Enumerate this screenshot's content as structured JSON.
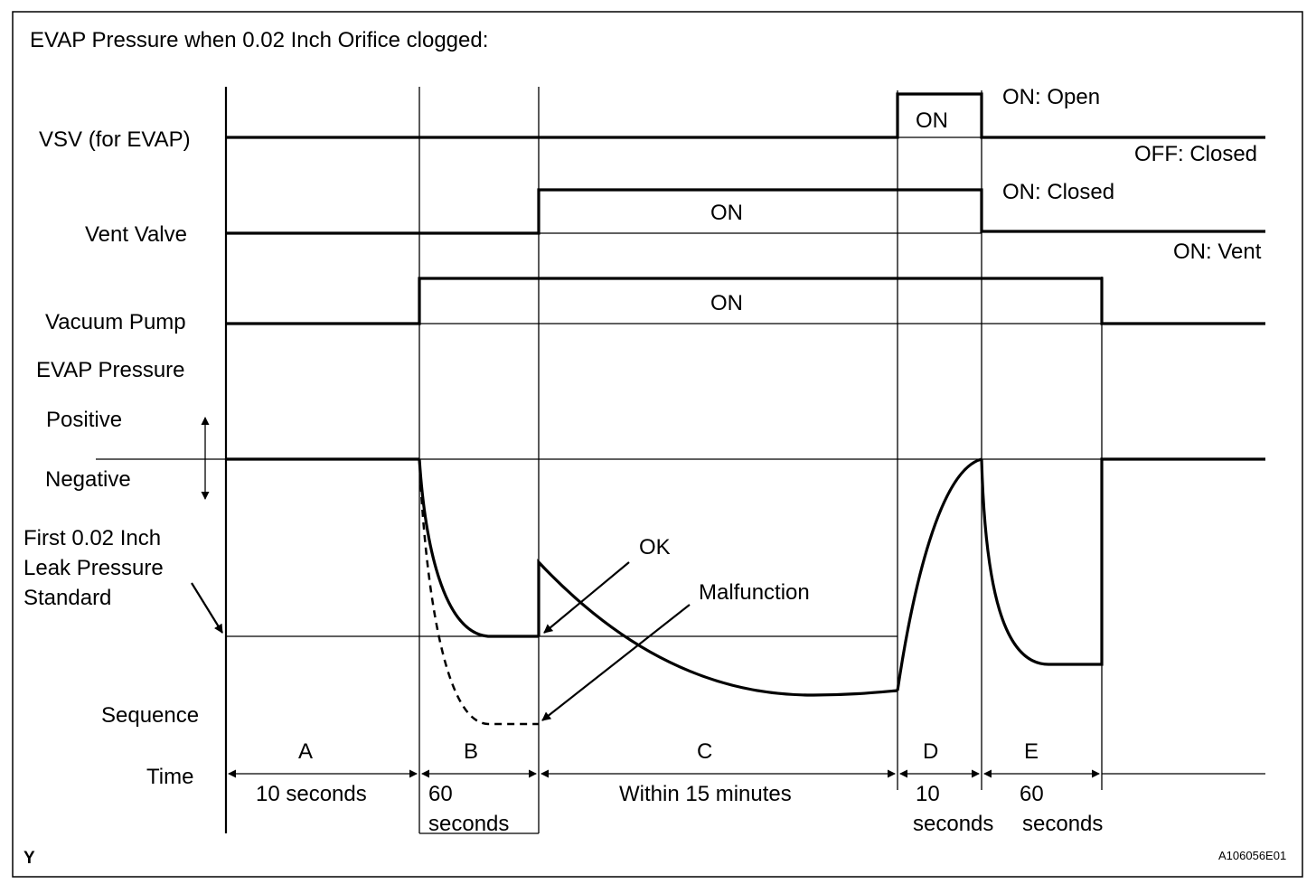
{
  "title": "EVAP Pressure when 0.02 Inch Orifice clogged:",
  "rows": {
    "vsv": "VSV (for EVAP)",
    "vent_valve": "Vent Valve",
    "vacuum_pump": "Vacuum Pump",
    "evap_pressure": "EVAP Pressure",
    "positive": "Positive",
    "negative": "Negative",
    "leak_standard": [
      "First 0.02 Inch",
      "Leak Pressure",
      "Standard"
    ],
    "sequence": "Sequence",
    "time": "Time"
  },
  "state_labels": {
    "vsv_on_box": "ON",
    "vsv_on_state": "ON: Open",
    "vsv_off_state": "OFF: Closed",
    "vent_on_box": "ON",
    "vent_on_state": "ON: Closed",
    "vent_off_state": "ON: Vent",
    "pump_on_box": "ON"
  },
  "callouts": {
    "ok": "OK",
    "malfunction": "Malfunction"
  },
  "sequence": [
    {
      "letter": "A",
      "time": [
        "10 seconds"
      ]
    },
    {
      "letter": "B",
      "time": [
        "60",
        "seconds"
      ]
    },
    {
      "letter": "C",
      "time": [
        "Within 15 minutes"
      ]
    },
    {
      "letter": "D",
      "time": [
        "10",
        "seconds"
      ]
    },
    {
      "letter": "E",
      "time": [
        "60",
        "seconds"
      ]
    }
  ],
  "footer": {
    "left_mark": "Y",
    "figure_id": "A106056E01"
  }
}
